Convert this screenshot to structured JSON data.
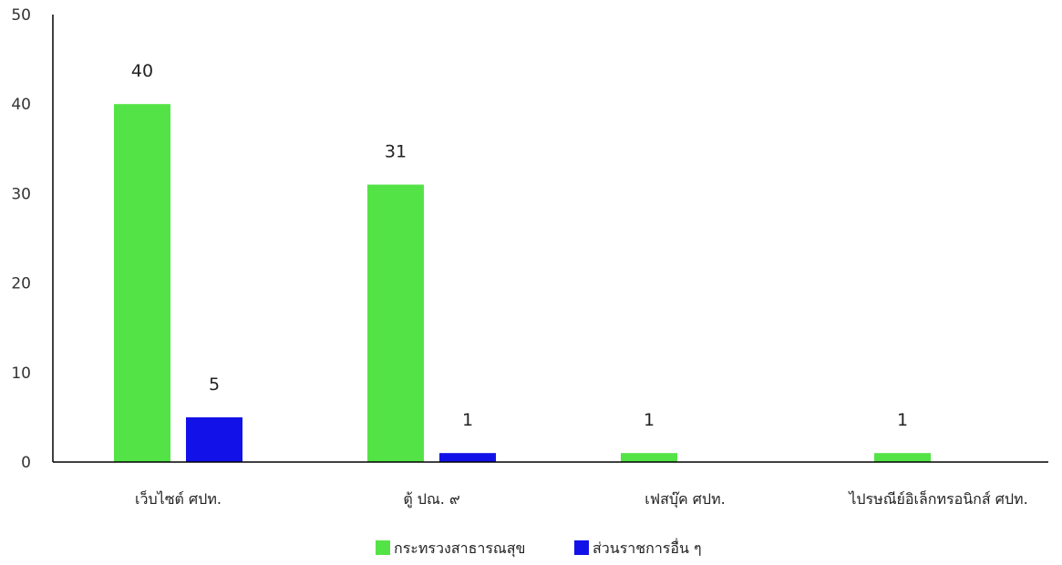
{
  "chart_data": {
    "type": "bar",
    "title": "",
    "xlabel": "",
    "ylabel": "",
    "ylim": [
      0,
      50
    ],
    "yticks": [
      0,
      10,
      20,
      30,
      40,
      50
    ],
    "grid": false,
    "legend_position": "bottom",
    "categories": [
      "เว็บไซต์ ศปท.",
      "ตู้ ปณ. ๙",
      "เฟสบุ๊ค ศปท.",
      "ไปรษณีย์อิเล็กทรอนิกส์ ศปท."
    ],
    "series": [
      {
        "name": "กระทรวงสาธารณสุข",
        "color": "#54e346",
        "values": [
          40,
          31,
          1,
          1
        ]
      },
      {
        "name": "ส่วนราชการอื่น ๆ",
        "color": "#1212e8",
        "values": [
          5,
          1,
          null,
          null
        ]
      }
    ]
  }
}
